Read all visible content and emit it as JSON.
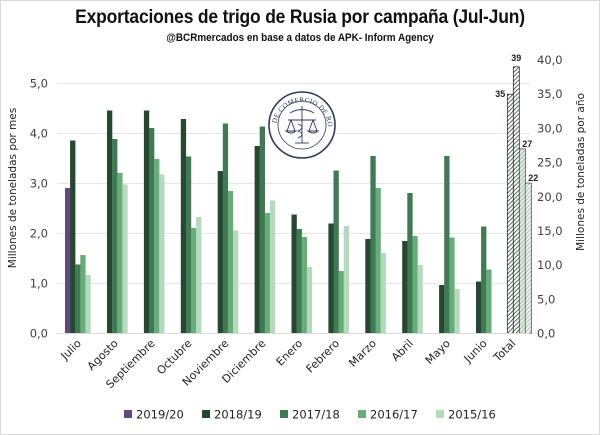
{
  "chart_data": {
    "type": "bar",
    "title": "Exportaciones de trigo de Rusia por campaña (Jul-Jun)",
    "subtitle": "@BCRmercados en base a datos de APK- Inform Agency",
    "ylabel": "Millones de toneladas por mes",
    "y2label": "Millones de toneladas por año",
    "ylim": [
      0,
      5.47
    ],
    "y2lim": [
      0,
      40
    ],
    "yticks": [
      "0,0",
      "1,0",
      "2,0",
      "3,0",
      "4,0",
      "5,0"
    ],
    "y2ticks": [
      "0,0",
      "5,0",
      "10,0",
      "15,0",
      "20,0",
      "25,0",
      "30,0",
      "35,0",
      "40,0"
    ],
    "grid": true,
    "legend_position": "bottom",
    "categories": [
      "Julio",
      "Agosto",
      "Septiembre",
      "Octubre",
      "Noviembre",
      "Diciembre",
      "Enero",
      "Febrero",
      "Marzo",
      "Abril",
      "Mayo",
      "Junio"
    ],
    "total_category": "Total",
    "series": [
      {
        "name": "2019/20",
        "color": "#604a7b",
        "values": [
          2.91,
          null,
          null,
          null,
          null,
          null,
          null,
          null,
          null,
          null,
          null,
          null
        ],
        "total": null
      },
      {
        "name": "2018/19",
        "color": "#264730",
        "values": [
          3.86,
          4.46,
          4.46,
          4.29,
          3.25,
          3.75,
          2.38,
          2.2,
          1.89,
          1.85,
          0.97,
          1.04
        ],
        "total": 35,
        "total_label": "35"
      },
      {
        "name": "2017/18",
        "color": "#3f7a52",
        "values": [
          1.38,
          3.89,
          4.11,
          3.54,
          4.2,
          4.14,
          2.09,
          3.26,
          3.55,
          2.81,
          3.55,
          2.14
        ],
        "total": 39,
        "total_label": "39"
      },
      {
        "name": "2016/17",
        "color": "#66ad7a",
        "values": [
          1.57,
          3.21,
          3.49,
          2.11,
          2.85,
          2.41,
          1.93,
          1.25,
          2.91,
          1.95,
          1.92,
          1.28
        ],
        "total": 27,
        "total_label": "27"
      },
      {
        "name": "2015/16",
        "color": "#b4d9bd",
        "values": [
          1.17,
          2.98,
          3.18,
          2.33,
          2.06,
          2.66,
          1.33,
          2.15,
          1.61,
          1.37,
          0.89,
          null
        ],
        "total": 22,
        "total_label": "22"
      }
    ]
  },
  "seal": {
    "text": "BOLSA DE COMERCIO DE ROSARIO",
    "icon": "scales-caduceus-seal-icon"
  }
}
